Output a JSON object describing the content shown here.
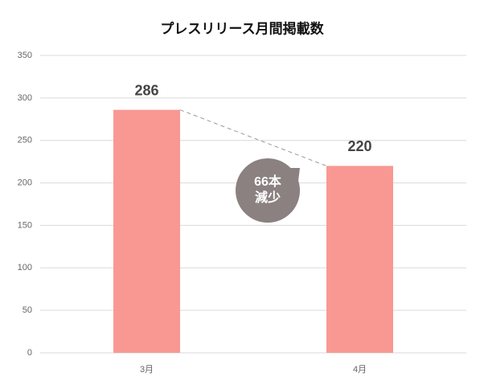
{
  "chart_data": {
    "type": "bar",
    "title": "プレスリリース月間掲載数",
    "categories": [
      "3月",
      "4月"
    ],
    "values": [
      286,
      220
    ],
    "color": "#f99893",
    "ylim": [
      0,
      350
    ],
    "yticks": [
      0,
      50,
      100,
      150,
      200,
      250,
      300,
      350
    ],
    "grid": true,
    "annotation": [
      "66本",
      "減少"
    ],
    "annotation_color": "#8a8180"
  }
}
